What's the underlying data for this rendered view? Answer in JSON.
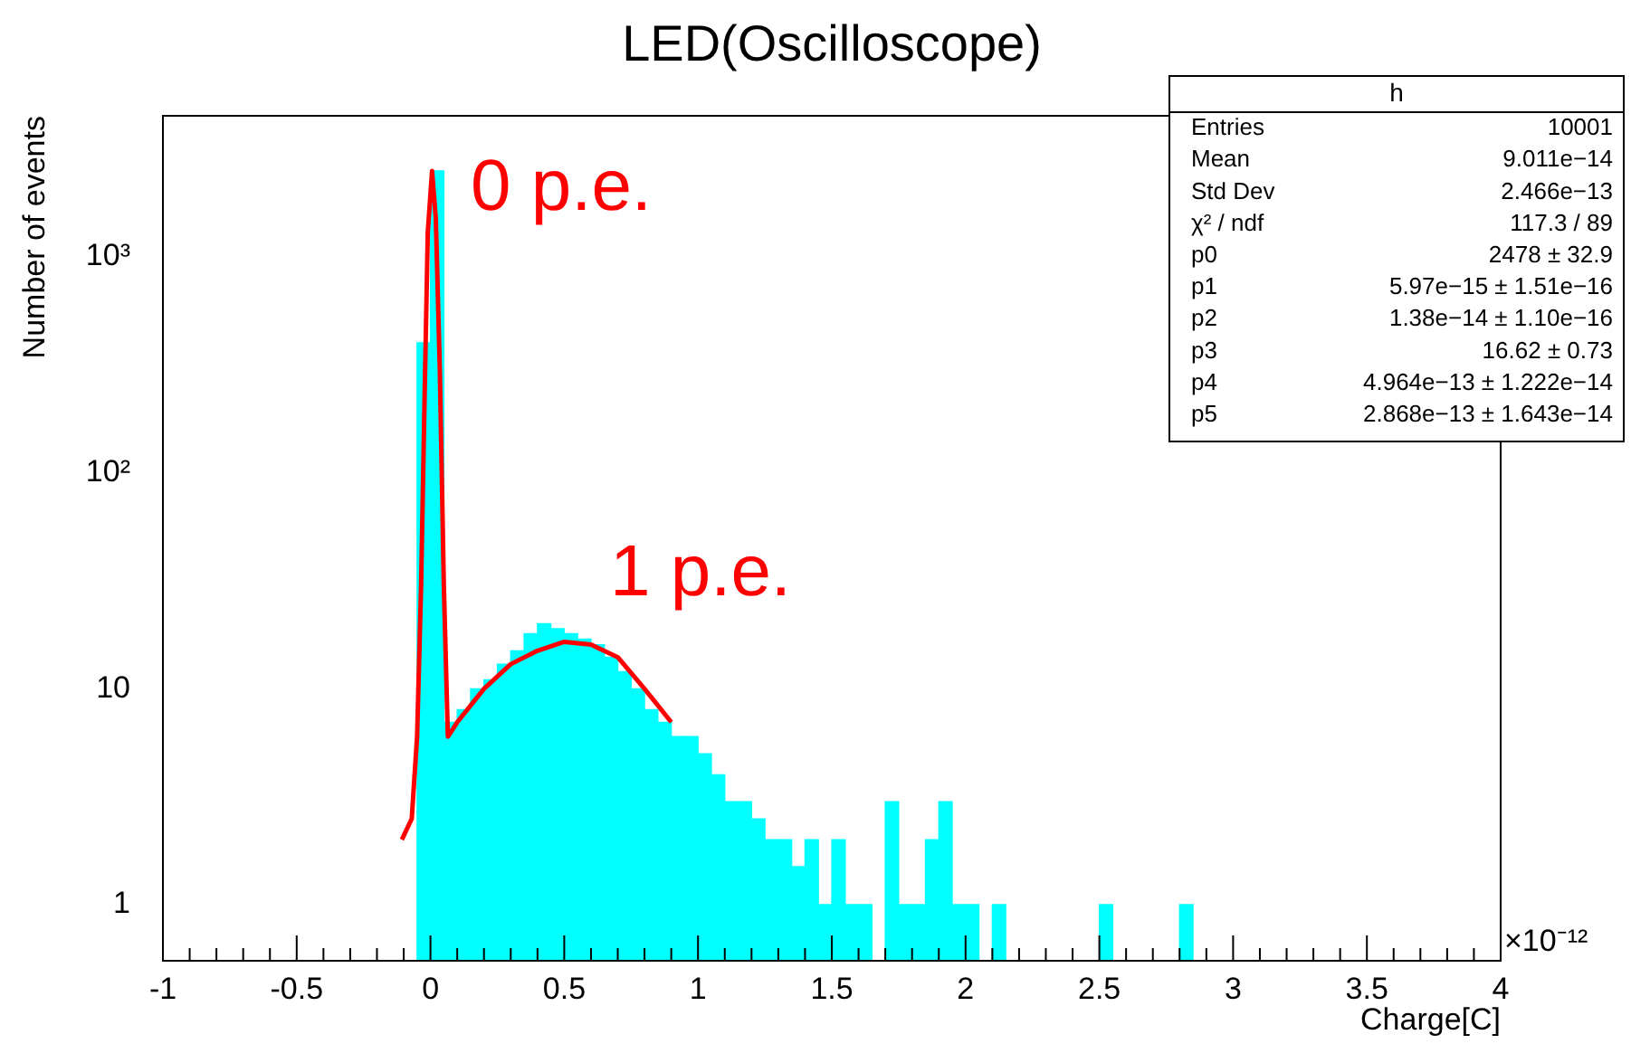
{
  "chart_data": {
    "type": "histogram",
    "title": "LED(Oscilloscope)",
    "xlabel": "Charge[C]",
    "ylabel": "Number of events",
    "log": "y",
    "grid": false,
    "legend": false,
    "bins": [
      -0.05,
      0,
      0.05,
      0.1,
      0.15,
      0.2,
      0.25,
      0.3,
      0.35,
      0.4,
      0.45,
      0.5,
      0.55,
      0.6,
      0.65,
      0.7,
      0.75,
      0.8,
      0.85,
      0.9,
      0.95,
      1.0,
      1.05,
      1.1,
      1.15,
      1.2,
      1.25,
      1.3,
      1.35,
      1.4,
      1.45,
      1.5,
      1.55,
      1.6,
      1.65,
      1.7,
      1.75,
      1.8,
      1.85,
      1.9,
      1.95,
      2.0,
      2.05,
      2.1,
      2.15,
      2.2,
      2.25,
      2.3,
      2.35,
      2.4,
      2.45,
      2.5,
      2.55,
      2.6,
      2.65,
      2.7,
      2.75,
      2.8,
      2.85
    ],
    "values": [
      400,
      2500,
      7,
      8,
      10,
      11,
      13,
      15,
      18,
      20,
      19,
      18,
      17,
      16,
      14,
      12,
      10,
      8,
      7,
      6,
      6,
      5,
      4,
      3,
      3,
      2.5,
      2,
      2,
      1.5,
      2,
      1,
      2,
      1,
      1,
      null,
      3,
      1,
      1,
      2,
      3,
      1,
      1,
      null,
      1,
      null,
      null,
      null,
      null,
      null,
      null,
      null,
      1,
      null,
      null,
      null,
      null,
      null,
      1
    ],
    "color": "#00ffff",
    "series": [
      {
        "type": "line",
        "color": "#ff0000",
        "x": [
          -0.107,
          -0.07,
          -0.05,
          -0.035,
          -0.02,
          -0.01,
          0.006,
          0.02,
          0.035,
          0.05,
          0.065,
          0.1,
          0.2,
          0.3,
          0.4,
          0.5,
          0.6,
          0.7,
          0.8,
          0.9
        ],
        "values": [
          2,
          2.5,
          6,
          30,
          300,
          1300,
          2500,
          1500,
          300,
          30,
          6,
          7,
          10,
          13,
          15,
          16.5,
          16,
          14,
          10,
          7
        ]
      }
    ],
    "xlim": [
      -1,
      4
    ],
    "xticks": [
      -1,
      -0.5,
      0,
      0.5,
      1,
      1.5,
      2,
      2.5,
      3,
      3.5,
      4
    ],
    "ylim": [
      0.55,
      4500
    ],
    "yticks": [
      {
        "value": 1,
        "label": "1"
      },
      {
        "value": 10,
        "label": "10"
      },
      {
        "value": 100,
        "label": "10²"
      },
      {
        "value": 1000,
        "label": "10³"
      }
    ],
    "annotations": [
      "×10⁻¹²",
      "h",
      "Entries",
      "10001",
      "Mean",
      "9.011e−14",
      "Std Dev",
      "2.466e−13",
      "χ² / ndf",
      "117.3 / 89",
      "p0",
      "2478 ± 32.9",
      "p1",
      "5.97e−15 ± 1.51e−16",
      "p2",
      "1.38e−14 ± 1.10e−16",
      "p3",
      "16.62 ± 0.73",
      "p4",
      "4.964e−13 ± 1.222e−14",
      "p5",
      "2.868e−13 ± 1.643e−14",
      "0 p.e.",
      "1 p.e."
    ]
  }
}
